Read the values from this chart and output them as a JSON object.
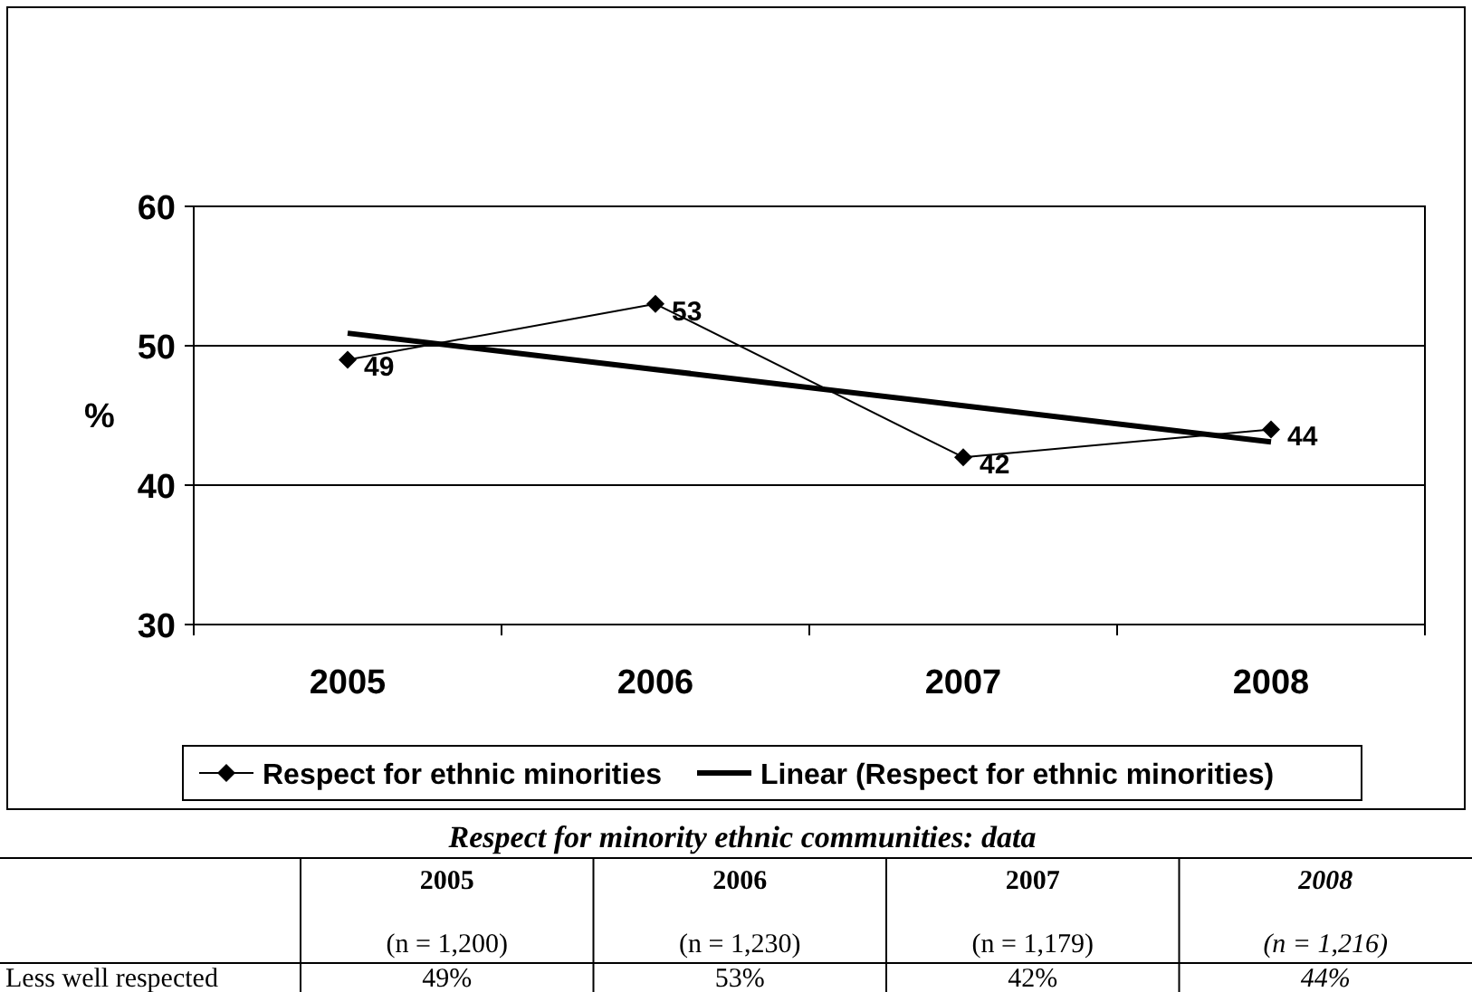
{
  "chart_data": {
    "type": "line",
    "categories": [
      "2005",
      "2006",
      "2007",
      "2008"
    ],
    "ylabel": "%",
    "ylim": [
      30,
      60
    ],
    "yticks": [
      30,
      40,
      50,
      60
    ],
    "grid": "y",
    "legend": "bottom",
    "series": [
      {
        "name": "Respect for ethnic minorities",
        "color": "#000000",
        "values": [
          49,
          53,
          42,
          44
        ],
        "value_labels": [
          "49",
          "53",
          "42",
          "44"
        ],
        "marker": "diamond"
      },
      {
        "name": "Linear (Respect for ethnic minorities)",
        "type": "line",
        "color": "#000000",
        "values": [
          50.9,
          48.3,
          45.7,
          43.1
        ],
        "marker": "none"
      }
    ],
    "annotations": [
      "Respect for minority ethnic communities: data",
      "(n = 1,200)",
      "(n = 1,230)",
      "(n = 1,179)",
      "(n = 1,216)",
      "Less well respected",
      "49%",
      "53%",
      "42%",
      "44%"
    ]
  }
}
